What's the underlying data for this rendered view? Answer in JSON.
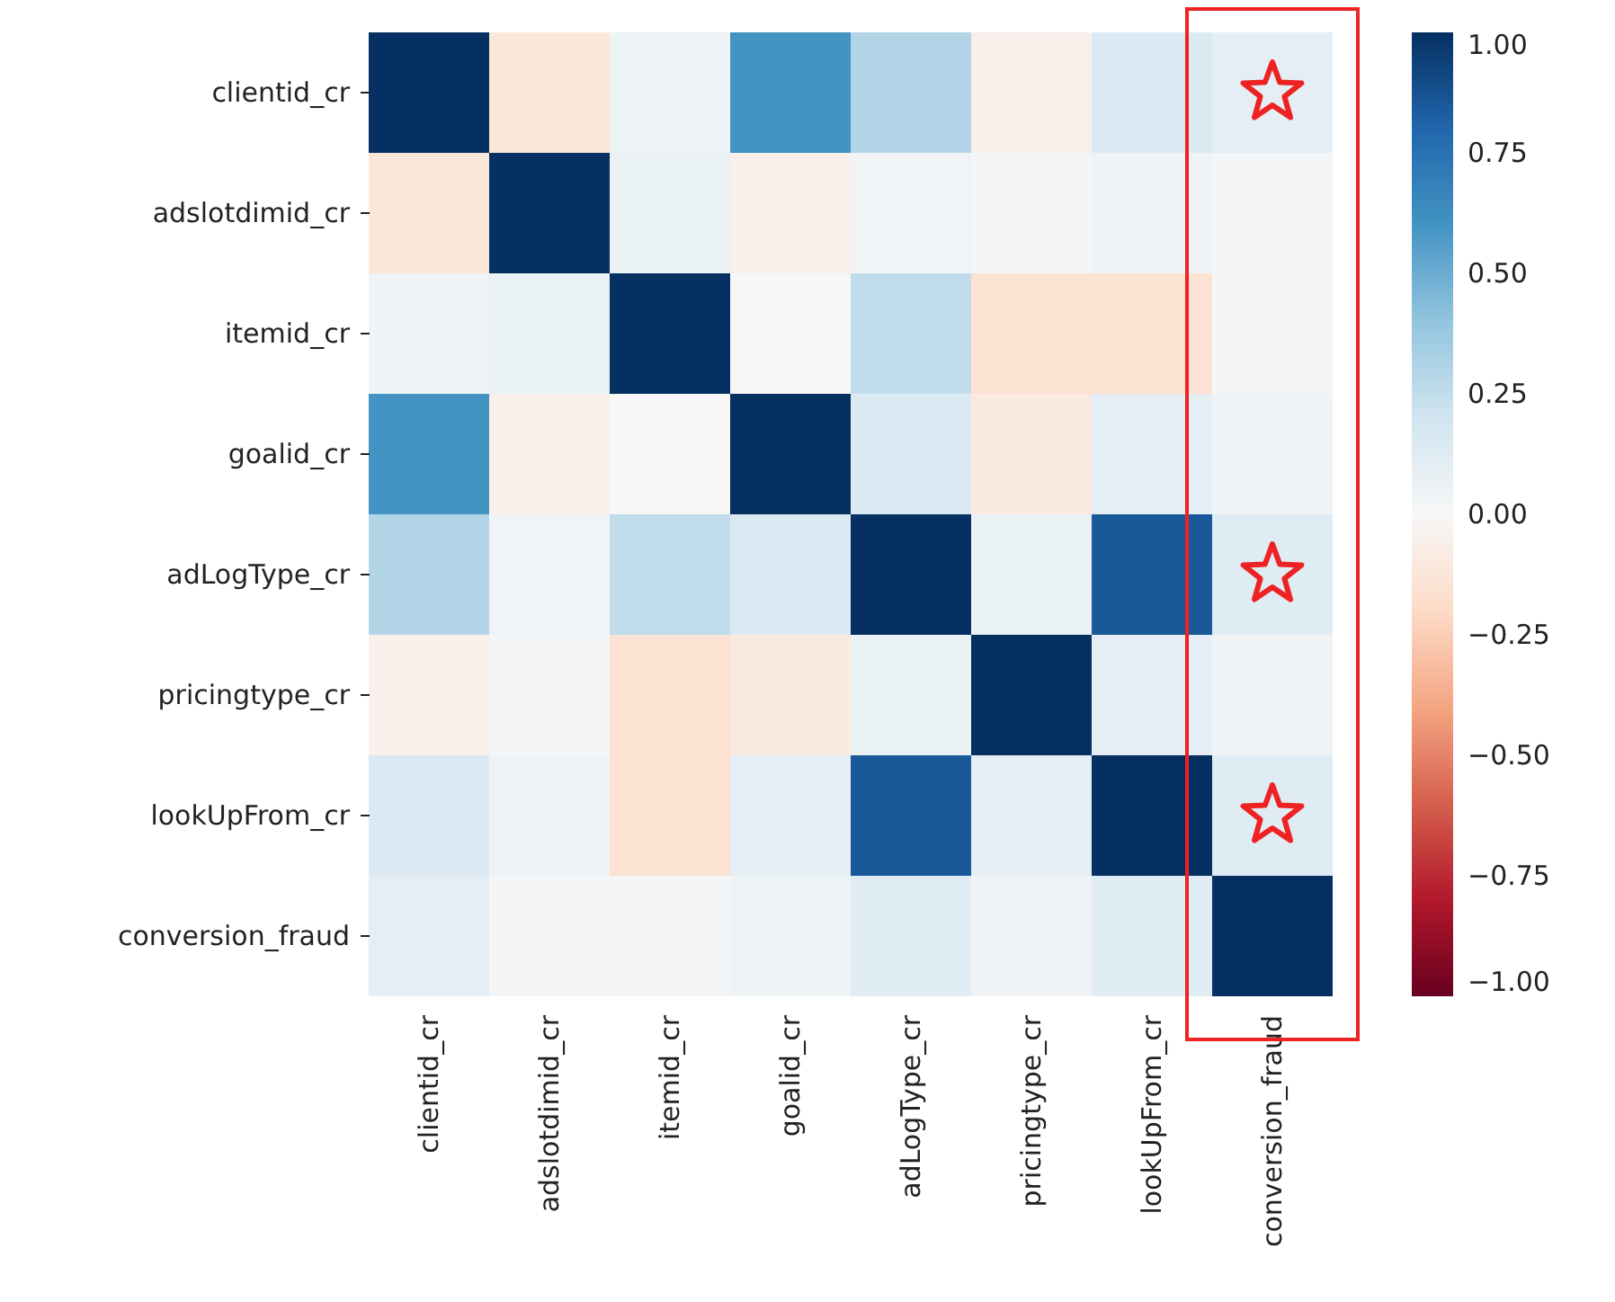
{
  "chart_data": {
    "type": "heatmap",
    "categories": [
      "clientid_cr",
      "adslotdimid_cr",
      "itemid_cr",
      "goalid_cr",
      "adLogType_cr",
      "pricingtype_cr",
      "lookUpFrom_cr",
      "conversion_fraud"
    ],
    "y_categories": [
      "clientid_cr",
      "adslotdimid_cr",
      "itemid_cr",
      "goalid_cr",
      "adLogType_cr",
      "pricingtype_cr",
      "lookUpFrom_cr",
      "conversion_fraud"
    ],
    "cells": [
      [
        1,
        -0.12,
        0.05,
        0.6,
        0.3,
        -0.05,
        0.15,
        0.1
      ],
      [
        -0.12,
        1,
        0.07,
        -0.05,
        0.03,
        0.02,
        0.04,
        0.02
      ],
      [
        0.05,
        0.07,
        1,
        0.0,
        0.25,
        -0.15,
        -0.15,
        0.02
      ],
      [
        0.6,
        -0.05,
        0.0,
        1,
        0.15,
        -0.1,
        0.1,
        0.05
      ],
      [
        0.3,
        0.03,
        0.25,
        0.15,
        1,
        0.07,
        0.85,
        0.12
      ],
      [
        -0.05,
        0.02,
        -0.15,
        -0.1,
        0.07,
        1,
        0.1,
        0.04
      ],
      [
        0.15,
        0.04,
        -0.15,
        0.1,
        0.85,
        0.1,
        1,
        0.12
      ],
      [
        0.1,
        0.02,
        0.02,
        0.05,
        0.12,
        0.04,
        0.12,
        1
      ]
    ],
    "clim": [
      -1,
      1
    ],
    "cticks": [
      {
        "value": -1,
        "label": "−1.00"
      },
      {
        "value": -0.75,
        "label": "−0.75"
      },
      {
        "value": -0.5,
        "label": "−0.50"
      },
      {
        "value": -0.25,
        "label": "−0.25"
      },
      {
        "value": 0,
        "label": "0.00"
      },
      {
        "value": 0.25,
        "label": "0.25"
      },
      {
        "value": 0.5,
        "label": "0.50"
      },
      {
        "value": 0.75,
        "label": "0.75"
      },
      {
        "value": 1,
        "label": "1.00"
      }
    ]
  }
}
